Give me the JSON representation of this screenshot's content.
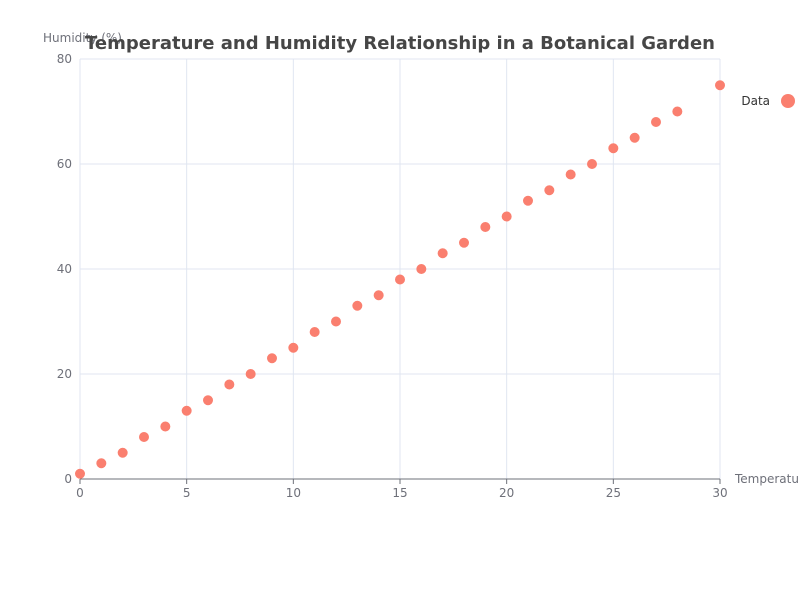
{
  "chart_data": {
    "type": "scatter",
    "title": "Temperature and Humidity Relationship in a Botanical Garden",
    "xlabel": "Temperature",
    "ylabel": "Humidity (%)",
    "xlim": [
      0,
      30
    ],
    "ylim": [
      0,
      80
    ],
    "xticks": [
      0,
      5,
      10,
      15,
      20,
      25,
      30
    ],
    "yticks": [
      0,
      20,
      40,
      60,
      80
    ],
    "grid": true,
    "legend_position": "top-right",
    "color": "#fa7f6f",
    "series": [
      {
        "name": "Data",
        "points": [
          [
            0,
            1
          ],
          [
            1,
            3
          ],
          [
            2,
            5
          ],
          [
            3,
            8
          ],
          [
            4,
            10
          ],
          [
            5,
            13
          ],
          [
            6,
            15
          ],
          [
            7,
            18
          ],
          [
            8,
            20
          ],
          [
            9,
            23
          ],
          [
            10,
            25
          ],
          [
            11,
            28
          ],
          [
            12,
            30
          ],
          [
            13,
            33
          ],
          [
            14,
            35
          ],
          [
            15,
            38
          ],
          [
            16,
            40
          ],
          [
            17,
            43
          ],
          [
            18,
            45
          ],
          [
            19,
            48
          ],
          [
            20,
            50
          ],
          [
            21,
            53
          ],
          [
            22,
            55
          ],
          [
            23,
            58
          ],
          [
            24,
            60
          ],
          [
            25,
            63
          ],
          [
            26,
            65
          ],
          [
            27,
            68
          ],
          [
            28,
            70
          ],
          [
            30,
            75
          ]
        ]
      }
    ]
  }
}
